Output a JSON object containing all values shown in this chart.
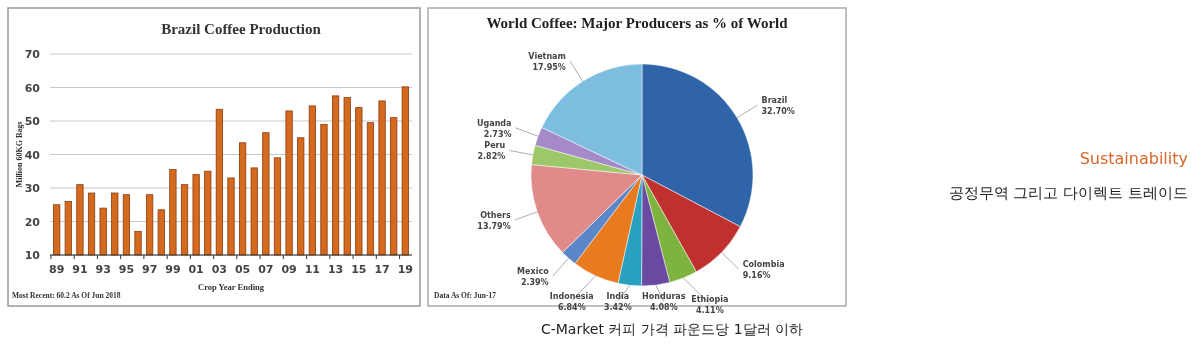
{
  "chart_data": [
    {
      "type": "bar",
      "title": "Brazil Coffee Production",
      "xlabel": "Crop Year Ending",
      "ylabel": "Million 60KG Bags",
      "categories": [
        "89",
        null,
        "91",
        null,
        "93",
        null,
        "95",
        null,
        "97",
        null,
        "99",
        null,
        "01",
        null,
        "03",
        null,
        "05",
        null,
        "07",
        null,
        "09",
        null,
        "11",
        null,
        "13",
        null,
        "15",
        null,
        "17",
        null,
        "19"
      ],
      "values": [
        25,
        26,
        31,
        28.5,
        24,
        28.5,
        28,
        17,
        28,
        23.5,
        35.5,
        31,
        34,
        35,
        53.5,
        33,
        43.5,
        36,
        46.5,
        39,
        53,
        45,
        54.5,
        49,
        57.5,
        57,
        54,
        49.5,
        56,
        51,
        60.2
      ],
      "color": "#d46a1e",
      "ylim": [
        10,
        70
      ],
      "yticks": [
        10,
        20,
        30,
        40,
        50,
        60,
        70
      ],
      "grid": "y",
      "annotations": [
        "Most Recent: 60.2 As Of Jun 2018"
      ]
    },
    {
      "type": "pie",
      "title": "World Coffee: Major Producers as % of World",
      "categories": [
        "Brazil",
        "Colombia",
        "Ethiopia",
        "Honduras",
        "India",
        "Indonesia",
        "Mexico",
        "Others",
        "Peru",
        "Uganda",
        "Vietnam"
      ],
      "values": [
        32.7,
        9.16,
        4.11,
        4.08,
        3.42,
        6.84,
        2.39,
        13.79,
        2.82,
        2.73,
        17.95
      ],
      "value_labels": [
        "32.70%",
        "9.16%",
        "4.11%",
        "4.08%",
        "3.42%",
        "6.84%",
        "2.39%",
        "13.79%",
        "2.82%",
        "2.73%",
        "17.95%"
      ],
      "colors": [
        "#2f64a8",
        "#c0302e",
        "#7fb33f",
        "#6a4aa0",
        "#2aa0c0",
        "#e87a20",
        "#5b86c8",
        "#e08a8a",
        "#9dc86a",
        "#a58ac8",
        "#7cbde0"
      ],
      "annotations": [
        "Data As Of: Jun-17"
      ]
    },
    {
      "type": "other",
      "title": "Sustainability",
      "subtitle": "공정무역 그리고 다이렉트 트레이드",
      "annotations": [
        "C-Market 커피 가격 파운드당 1달러 이하"
      ]
    }
  ]
}
